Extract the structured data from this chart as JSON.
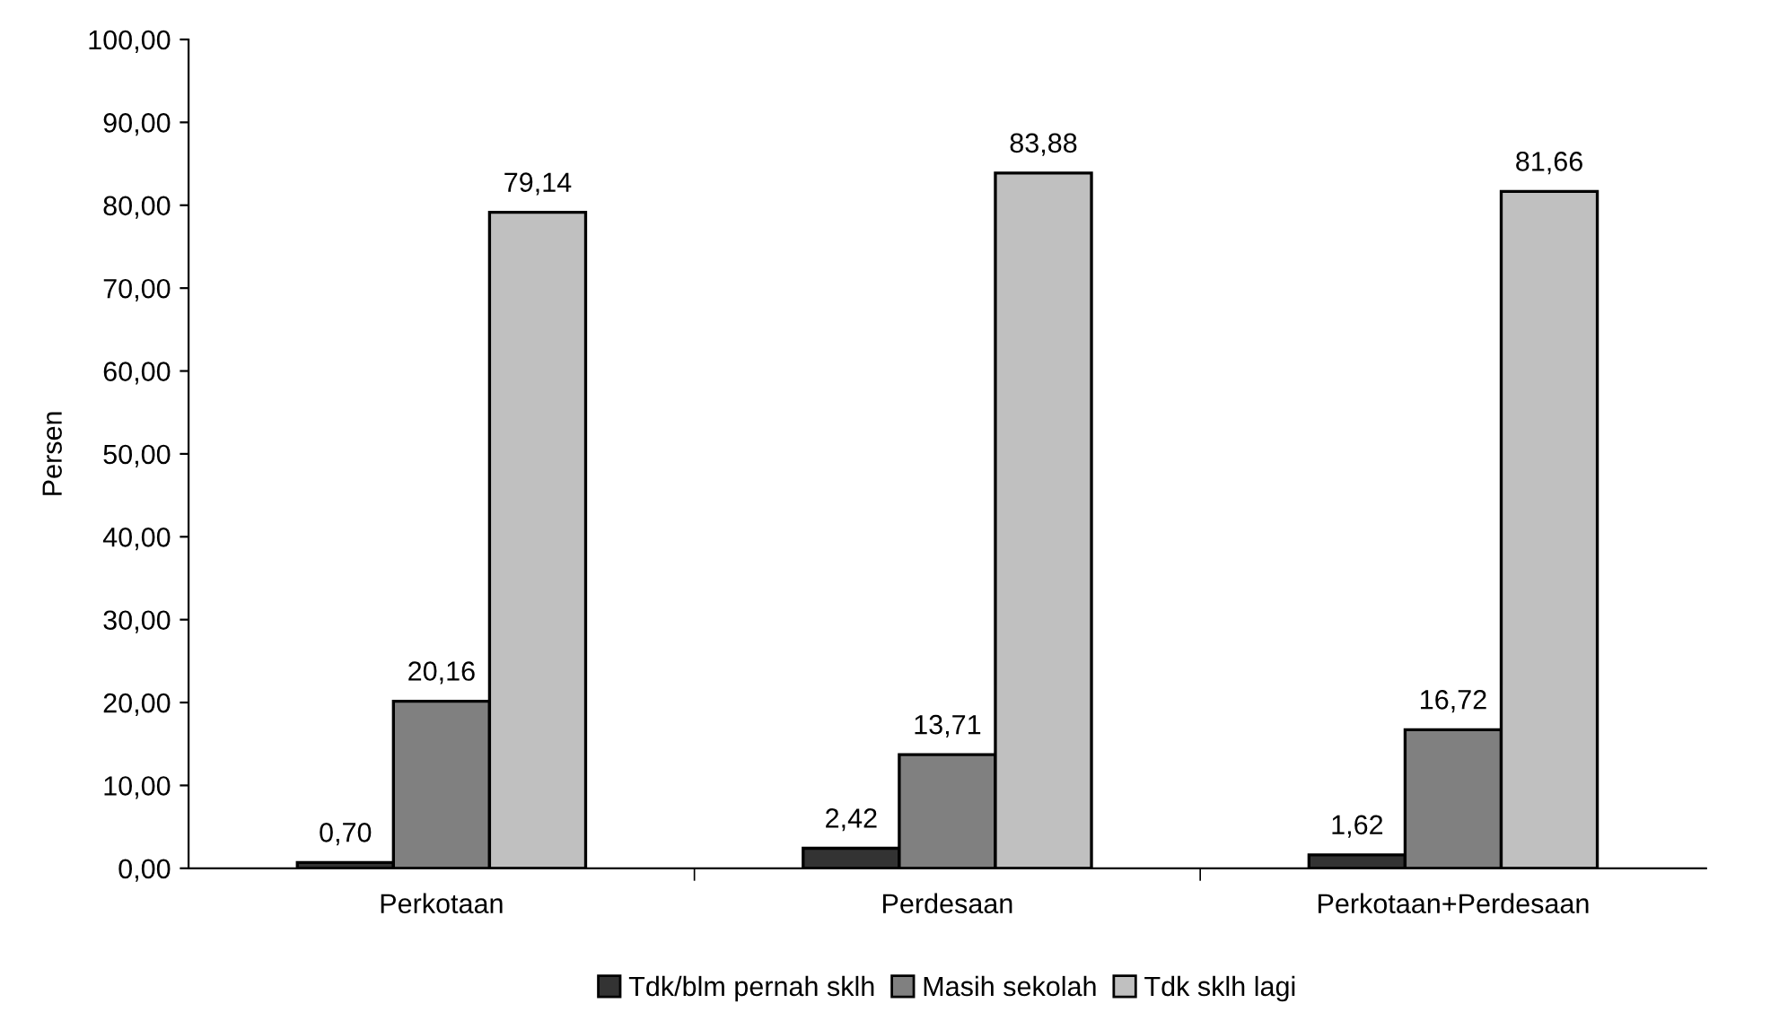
{
  "chart_data": {
    "type": "bar",
    "ylabel": "Persen",
    "categories": [
      "Perkotaan",
      "Perdesaan",
      "Perkotaan+Perdesaan"
    ],
    "series": [
      {
        "name": "Tdk/blm pernah sklh",
        "color": "#333333",
        "values": [
          0.7,
          2.42,
          1.62
        ],
        "value_labels": [
          "0,70",
          "2,42",
          "1,62"
        ]
      },
      {
        "name": "Masih sekolah",
        "color": "#808080",
        "values": [
          20.16,
          13.71,
          16.72
        ],
        "value_labels": [
          "20,16",
          "13,71",
          "16,72"
        ]
      },
      {
        "name": "Tdk sklh lagi",
        "color": "#c0c0c0",
        "values": [
          79.14,
          83.88,
          81.66
        ],
        "value_labels": [
          "79,14",
          "83,88",
          "81,66"
        ]
      }
    ],
    "ylim": [
      0,
      100
    ],
    "yticks": [
      {
        "value": 0,
        "label": "0,00"
      },
      {
        "value": 10,
        "label": "10,00"
      },
      {
        "value": 20,
        "label": "20,00"
      },
      {
        "value": 30,
        "label": "30,00"
      },
      {
        "value": 40,
        "label": "40,00"
      },
      {
        "value": 50,
        "label": "50,00"
      },
      {
        "value": 60,
        "label": "60,00"
      },
      {
        "value": 70,
        "label": "70,00"
      },
      {
        "value": 80,
        "label": "80,00"
      },
      {
        "value": 90,
        "label": "90,00"
      },
      {
        "value": 100,
        "label": "100,00"
      }
    ],
    "grid": false,
    "legend": "bottom"
  }
}
